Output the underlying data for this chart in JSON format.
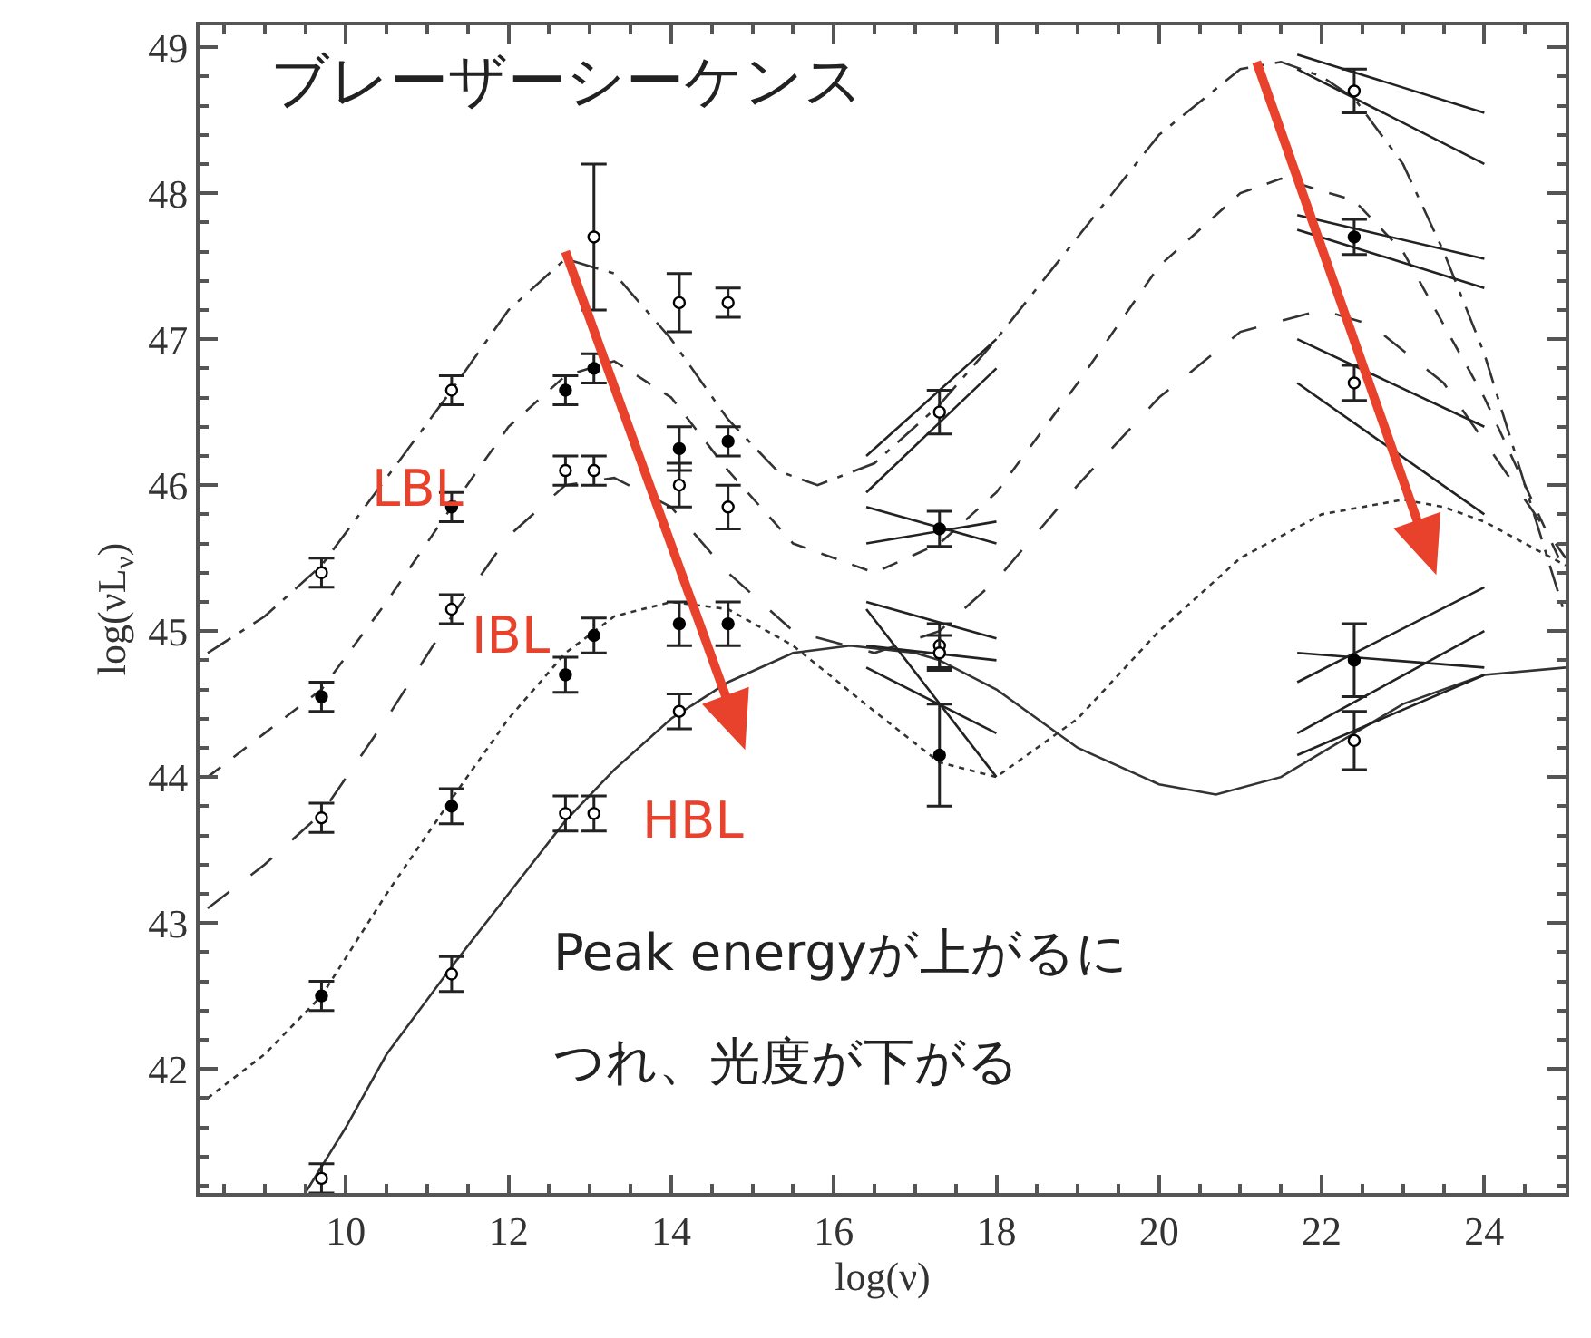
{
  "chart_data": {
    "type": "line",
    "title": "ブレーザーシーケンス",
    "xlabel": "log(ν)",
    "ylabel": "log(νL$_{ν}$)",
    "xlim": [
      8.2,
      25
    ],
    "ylim": [
      41.15,
      49.15
    ],
    "xticks": [
      10,
      12,
      14,
      16,
      18,
      20,
      22,
      24
    ],
    "yticks": [
      42,
      43,
      44,
      45,
      46,
      47,
      48,
      49
    ],
    "annotations": [
      "Peak energyが上がるに",
      "つれ、光度が下がる",
      "LBL",
      "IBL",
      "HBL"
    ],
    "series": [
      {
        "line_style": "dashed",
        "color": "#333333",
        "x": [
          8.3,
          9.0,
          9.7,
          10.5,
          11.3,
          12.0,
          12.7,
          13.3,
          14.0,
          14.7,
          15.3,
          15.8,
          16.5,
          17.3,
          18.0,
          19.0,
          20.0,
          21.0,
          21.5,
          22.0,
          22.4,
          23.0,
          23.5,
          24.0,
          24.5,
          25.0
        ],
        "values": [
          44.85,
          45.1,
          45.45,
          46.05,
          46.65,
          47.2,
          47.55,
          47.45,
          47.0,
          46.45,
          46.1,
          46.0,
          46.15,
          46.55,
          47.0,
          47.7,
          48.4,
          48.85,
          48.9,
          48.8,
          48.65,
          48.2,
          47.6,
          46.9,
          46.0,
          45.1
        ]
      },
      {
        "line_style": "dashed",
        "color": "#333333",
        "x": [
          8.3,
          9.0,
          9.7,
          10.5,
          11.3,
          12.0,
          12.7,
          13.3,
          14.0,
          14.7,
          15.5,
          16.5,
          17.3,
          18.0,
          19.0,
          20.0,
          21.0,
          21.5,
          22.4,
          23.0,
          23.5,
          24.0,
          24.5,
          25.0
        ],
        "values": [
          44.0,
          44.3,
          44.6,
          45.2,
          45.85,
          46.4,
          46.75,
          46.85,
          46.6,
          46.1,
          45.6,
          45.4,
          45.6,
          45.95,
          46.7,
          47.5,
          48.0,
          48.1,
          47.95,
          47.6,
          47.1,
          46.6,
          46.0,
          45.4
        ]
      },
      {
        "line_style": "dashed",
        "color": "#333333",
        "x": [
          8.3,
          9.0,
          9.7,
          10.5,
          11.3,
          12.0,
          12.7,
          13.3,
          14.0,
          14.7,
          15.5,
          16.5,
          17.3,
          18.0,
          19.0,
          20.0,
          21.0,
          22.0,
          22.6,
          23.5,
          24.0,
          24.5,
          25.0
        ],
        "values": [
          43.1,
          43.4,
          43.75,
          44.4,
          45.1,
          45.65,
          46.0,
          46.05,
          45.85,
          45.4,
          45.0,
          44.85,
          45.0,
          45.35,
          46.0,
          46.6,
          47.05,
          47.2,
          47.1,
          46.7,
          46.3,
          45.9,
          45.5
        ]
      },
      {
        "line_style": "dotted",
        "color": "#333333",
        "x": [
          8.3,
          9.0,
          9.7,
          10.5,
          11.3,
          12.0,
          12.7,
          13.3,
          14.0,
          14.7,
          15.5,
          16.5,
          17.3,
          18.0,
          19.0,
          20.0,
          21.0,
          22.0,
          23.0,
          23.5,
          24.0,
          24.5,
          25.0
        ],
        "values": [
          41.8,
          42.1,
          42.5,
          43.2,
          43.85,
          44.4,
          44.85,
          45.1,
          45.2,
          45.15,
          44.9,
          44.45,
          44.1,
          44.0,
          44.4,
          45.0,
          45.5,
          45.8,
          45.9,
          45.85,
          45.75,
          45.6,
          45.45
        ]
      },
      {
        "line_style": "solid",
        "color": "#333333",
        "x": [
          9.5,
          10.0,
          10.5,
          11.3,
          12.0,
          12.7,
          13.3,
          14.0,
          14.7,
          15.5,
          16.2,
          17.0,
          17.3,
          18.0,
          19.0,
          20.0,
          20.7,
          21.5,
          22.4,
          23.0,
          24.0,
          25.0
        ],
        "values": [
          41.15,
          41.6,
          42.1,
          42.7,
          43.2,
          43.7,
          44.05,
          44.4,
          44.65,
          44.85,
          44.9,
          44.85,
          44.8,
          44.6,
          44.2,
          43.95,
          43.88,
          44.0,
          44.3,
          44.5,
          44.7,
          44.75
        ]
      },
      {
        "line_style": "solid",
        "color": "#222222",
        "x": [
          16.4,
          18.0
        ],
        "values": [
          45.95,
          46.8
        ]
      },
      {
        "line_style": "solid",
        "color": "#222222",
        "x": [
          16.4,
          18.0
        ],
        "values": [
          46.2,
          47.0
        ]
      },
      {
        "line_style": "solid",
        "color": "#222222",
        "x": [
          16.4,
          18.0
        ],
        "values": [
          45.6,
          45.75
        ]
      },
      {
        "line_style": "solid",
        "color": "#222222",
        "x": [
          16.4,
          18.0
        ],
        "values": [
          45.85,
          45.6
        ]
      },
      {
        "line_style": "solid",
        "color": "#222222",
        "x": [
          16.4,
          18.0
        ],
        "values": [
          44.9,
          44.8
        ]
      },
      {
        "line_style": "solid",
        "color": "#222222",
        "x": [
          16.4,
          18.0
        ],
        "values": [
          45.2,
          44.95
        ]
      },
      {
        "line_style": "solid",
        "color": "#222222",
        "x": [
          16.4,
          18.0
        ],
        "values": [
          45.15,
          44.0
        ]
      },
      {
        "line_style": "solid",
        "color": "#222222",
        "x": [
          16.4,
          18.0
        ],
        "values": [
          44.75,
          44.3
        ]
      },
      {
        "line_style": "solid",
        "color": "#222222",
        "x": [
          21.7,
          24.0
        ],
        "values": [
          48.85,
          48.2
        ]
      },
      {
        "line_style": "solid",
        "color": "#222222",
        "x": [
          21.7,
          24.0
        ],
        "values": [
          48.95,
          48.55
        ]
      },
      {
        "line_style": "solid",
        "color": "#222222",
        "x": [
          21.7,
          24.0
        ],
        "values": [
          47.75,
          47.35
        ]
      },
      {
        "line_style": "solid",
        "color": "#222222",
        "x": [
          21.7,
          24.0
        ],
        "values": [
          47.85,
          47.55
        ]
      },
      {
        "line_style": "solid",
        "color": "#222222",
        "x": [
          21.7,
          24.0
        ],
        "values": [
          46.7,
          45.8
        ]
      },
      {
        "line_style": "solid",
        "color": "#222222",
        "x": [
          21.7,
          24.0
        ],
        "values": [
          47.0,
          46.4
        ]
      },
      {
        "line_style": "solid",
        "color": "#222222",
        "x": [
          21.7,
          24.0
        ],
        "values": [
          44.65,
          45.3
        ]
      },
      {
        "line_style": "solid",
        "color": "#222222",
        "x": [
          21.7,
          24.0
        ],
        "values": [
          44.85,
          44.75
        ]
      },
      {
        "line_style": "solid",
        "color": "#222222",
        "x": [
          21.7,
          24.0
        ],
        "values": [
          44.15,
          44.7
        ]
      },
      {
        "line_style": "solid",
        "color": "#222222",
        "x": [
          21.7,
          24.0
        ],
        "values": [
          44.3,
          45.0
        ]
      },
      {
        "type": "scatter",
        "marker": "circle",
        "color": "#ffffff",
        "x": [
          9.7,
          11.3,
          13.05,
          14.1,
          14.7,
          17.3,
          22.4
        ],
        "values": [
          45.4,
          46.65,
          47.7,
          47.25,
          47.25,
          46.5,
          48.7
        ],
        "errors": [
          0.1,
          0.1,
          0.5,
          0.2,
          0.1,
          0.15,
          0.15
        ]
      },
      {
        "type": "scatter",
        "marker": "circle",
        "color": "#000000",
        "x": [
          9.7,
          11.3,
          12.7,
          13.05,
          14.1,
          14.7,
          17.3,
          22.4
        ],
        "values": [
          44.55,
          45.85,
          46.65,
          46.8,
          46.25,
          46.3,
          45.7,
          47.7
        ],
        "errors": [
          0.1,
          0.1,
          0.1,
          0.1,
          0.15,
          0.1,
          0.12,
          0.12
        ]
      },
      {
        "type": "scatter",
        "marker": "circle",
        "color": "#ffffff",
        "x": [
          9.7,
          11.3,
          12.7,
          13.05,
          14.1,
          14.7,
          17.3,
          22.4
        ],
        "values": [
          43.72,
          45.15,
          46.1,
          46.1,
          46.0,
          45.85,
          44.9,
          46.7
        ],
        "errors": [
          0.1,
          0.1,
          0.1,
          0.1,
          0.15,
          0.15,
          0.15,
          0.12
        ]
      },
      {
        "type": "scatter",
        "marker": "circle",
        "color": "#000000",
        "x": [
          9.7,
          11.3,
          12.7,
          13.05,
          14.1,
          14.7,
          17.3,
          22.4
        ],
        "values": [
          42.5,
          43.8,
          44.7,
          44.97,
          45.05,
          45.05,
          44.15,
          44.8
        ],
        "errors": [
          0.1,
          0.12,
          0.12,
          0.12,
          0.15,
          0.15,
          0.35,
          0.25
        ]
      },
      {
        "type": "scatter",
        "marker": "circle",
        "color": "#ffffff",
        "x": [
          9.7,
          11.3,
          12.7,
          13.05,
          14.1,
          17.3,
          22.4
        ],
        "values": [
          41.25,
          42.65,
          43.75,
          43.75,
          44.45,
          44.85,
          44.25
        ],
        "errors": [
          0.1,
          0.12,
          0.12,
          0.12,
          0.12,
          0.12,
          0.2
        ]
      }
    ]
  }
}
